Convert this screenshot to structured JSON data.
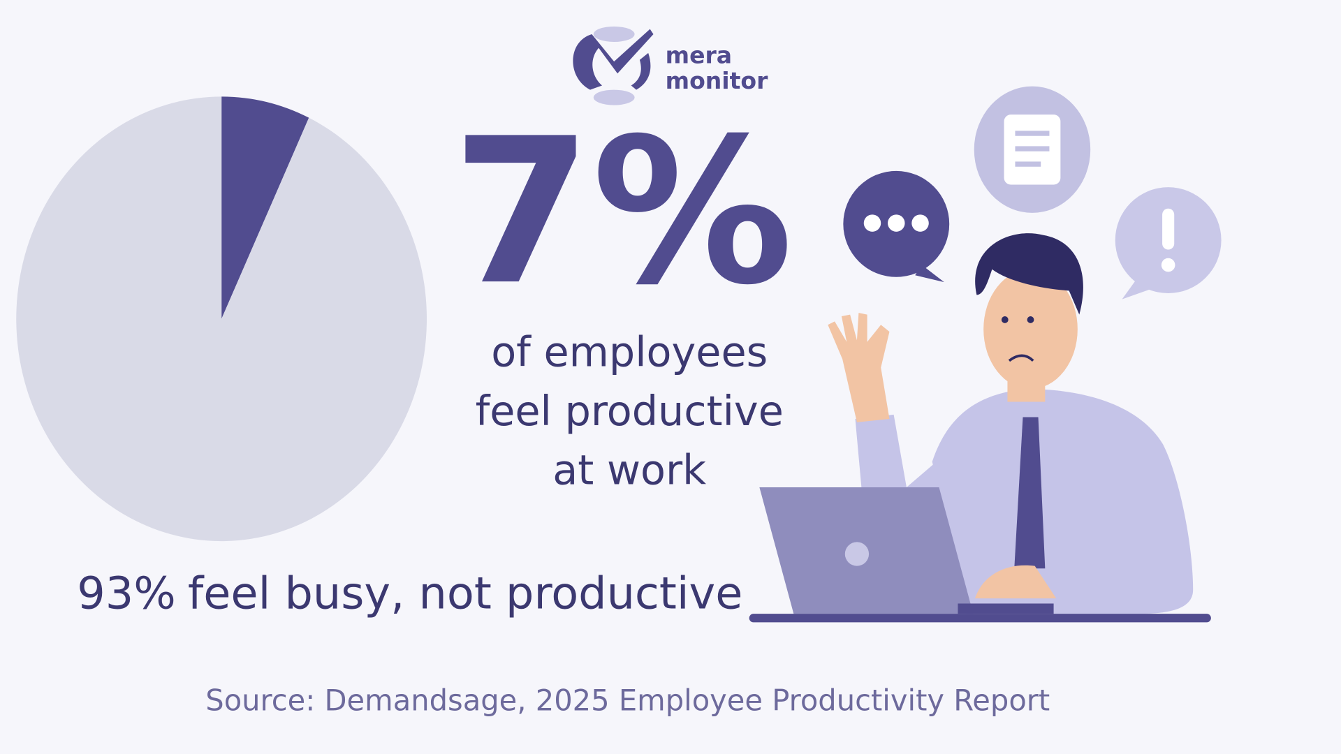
{
  "logo": {
    "line1": "mera",
    "line2": "monitor"
  },
  "chart_data": {
    "type": "pie",
    "values": [
      7,
      93
    ],
    "value_labels": [
      "7%",
      "93%"
    ],
    "colors": [
      "#514c8f",
      "#d9dae7"
    ],
    "headline_lines": [
      "of employees",
      "feel productive",
      "at work"
    ],
    "caption": "feel busy, not productive",
    "source": "Source: Demandsage, 2025 Employee Productivity Report"
  }
}
